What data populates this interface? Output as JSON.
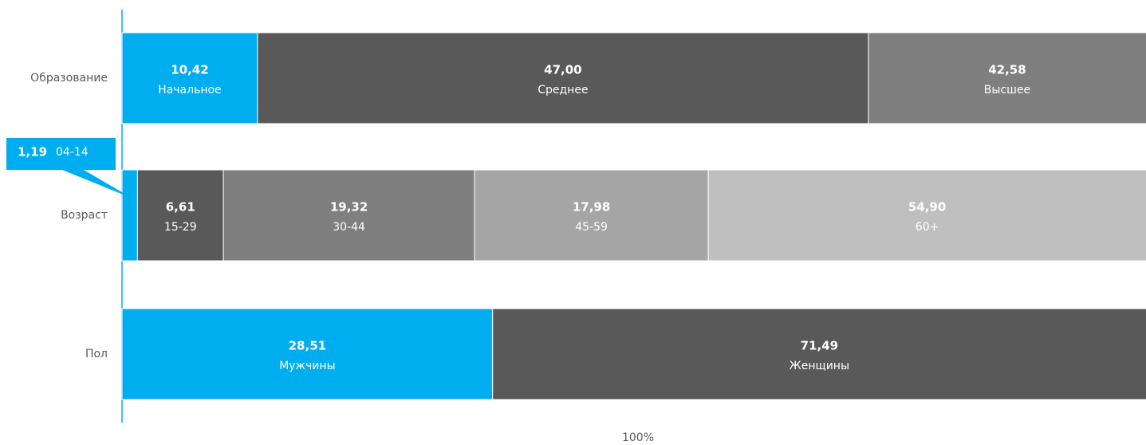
{
  "chart_data": {
    "type": "stacked-bar-horizontal",
    "xlabel": "100%",
    "xlim": [
      0,
      100
    ],
    "rows": [
      {
        "name": "Образование",
        "labels": [
          "Начальное",
          "Среднее",
          "Высшее"
        ],
        "values": [
          10.42,
          47.0,
          42.58
        ],
        "value_labels": [
          "10,42",
          "47,00",
          "42,58"
        ],
        "colors": [
          "#00adef",
          "#595959",
          "#7f7f7f"
        ]
      },
      {
        "name": "Возраст",
        "labels": [
          "04-14",
          "15-29",
          "30-44",
          "45-59",
          "60+"
        ],
        "values": [
          1.19,
          6.61,
          19.32,
          17.98,
          54.9
        ],
        "value_labels": [
          "1,19",
          "6,61",
          "19,32",
          "17,98",
          "54,90"
        ],
        "colors": [
          "#00adef",
          "#595959",
          "#7f7f7f",
          "#a5a5a5",
          "#bfbfbf"
        ]
      },
      {
        "name": "Пол",
        "labels": [
          "Мужчины",
          "Женщины"
        ],
        "values": [
          28.51,
          71.49
        ],
        "value_labels": [
          "28,51",
          "71,49"
        ],
        "colors": [
          "#00adef",
          "#595959"
        ]
      }
    ]
  }
}
